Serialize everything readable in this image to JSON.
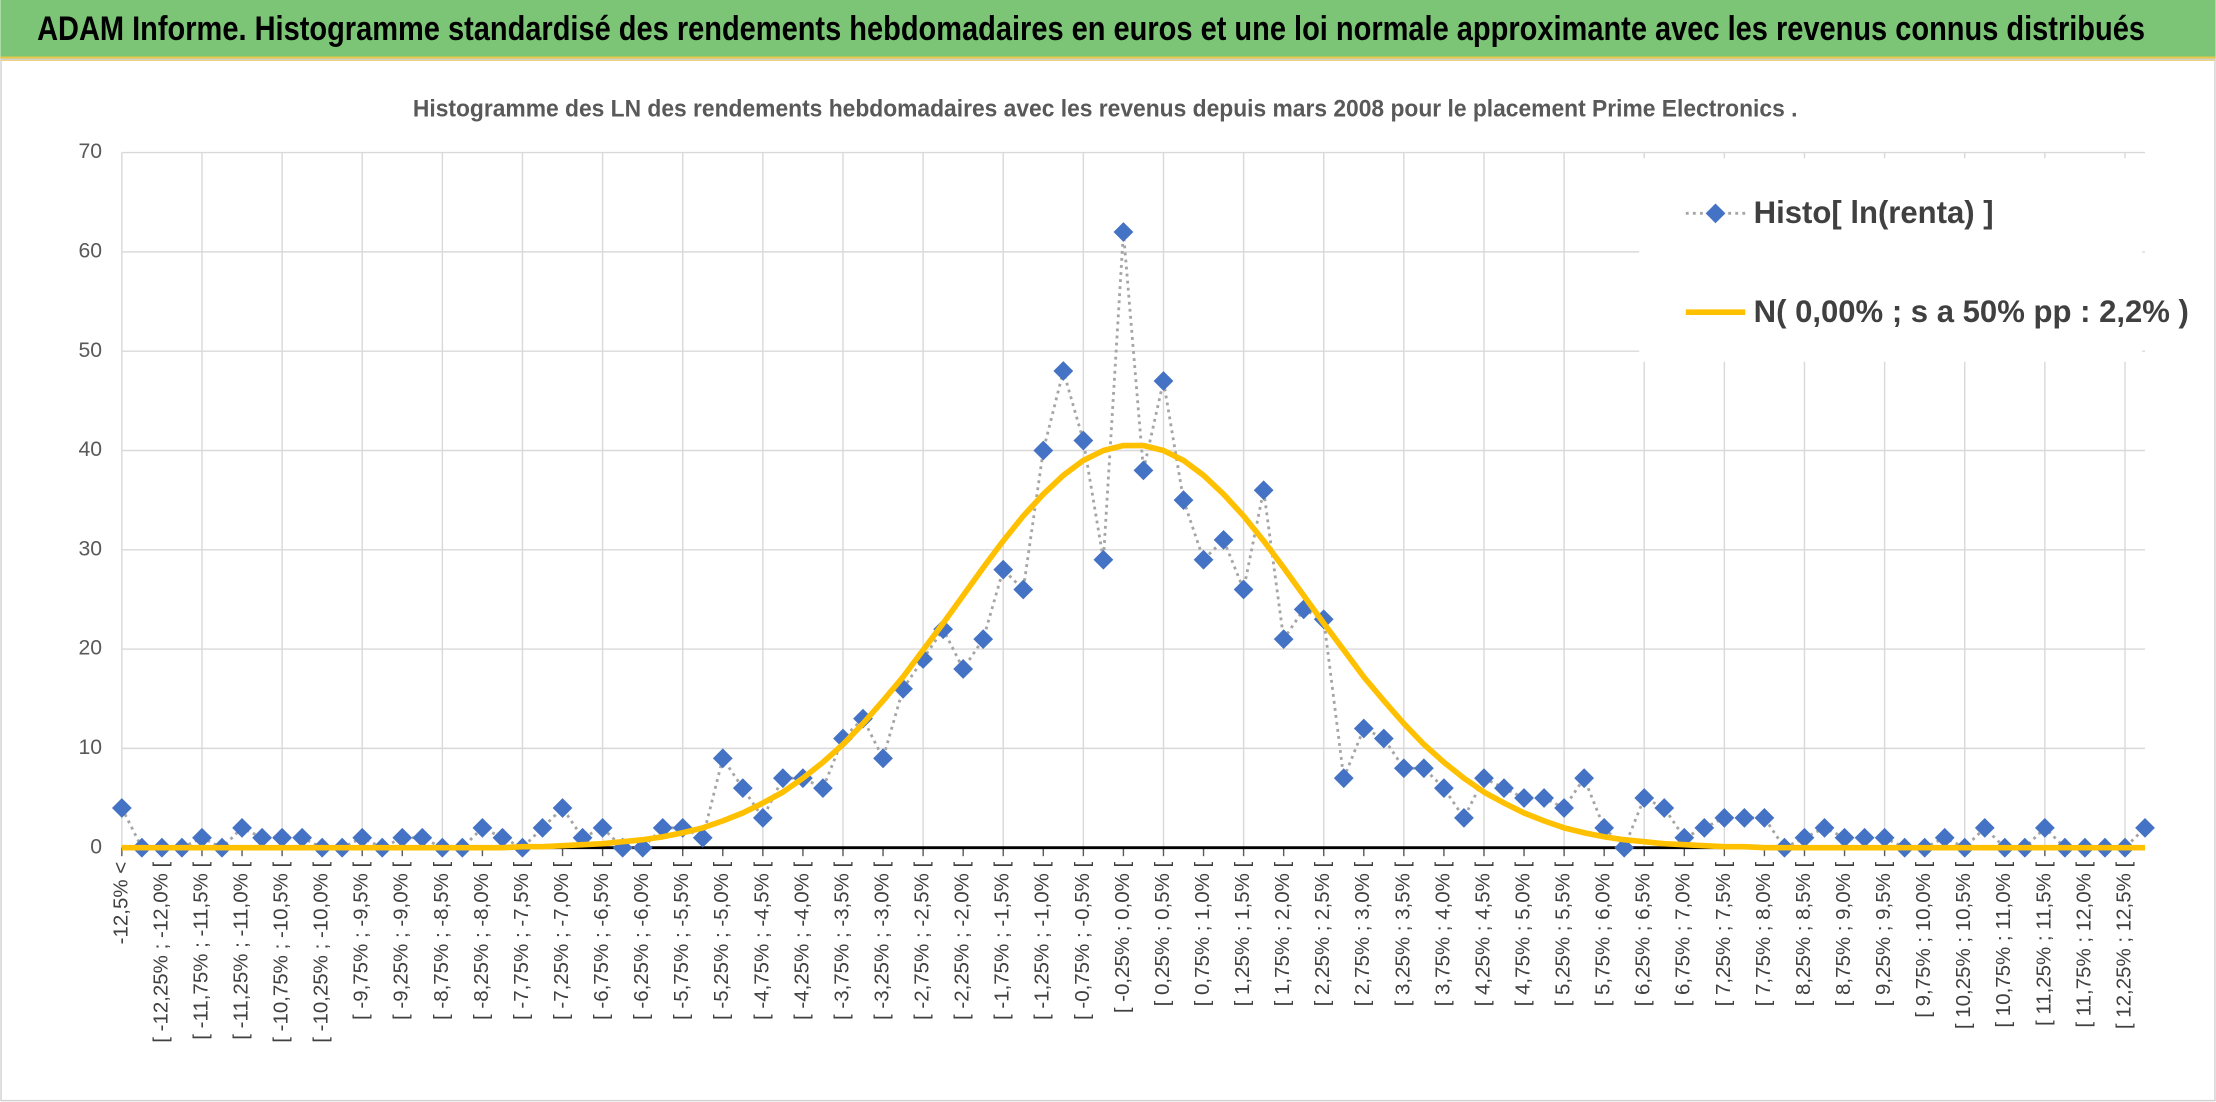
{
  "header": {
    "title": "ADAM Informe. Histogramme standardisé des rendements hebdomadaires en euros et une loi normale approximante avec les revenus connus distribués"
  },
  "chart_data": {
    "type": "line",
    "title": "Histogramme des LN des rendements hebdomadaires avec les revenus depuis mars 2008 pour le placement Prime Electronics .",
    "categories": [
      "-12,5% <",
      null,
      "[ -12,25% ; -12,0% [",
      null,
      "[ -11,75% ; -11,5% [",
      null,
      "[ -11,25% ; -11,0% [",
      null,
      "[ -10,75% ; -10,5% [",
      null,
      "[ -10,25% ; -10,0% [",
      null,
      "[ -9,75% ; -9,5% [",
      null,
      "[ -9,25% ; -9,0% [",
      null,
      "[ -8,75% ; -8,5% [",
      null,
      "[ -8,25% ; -8,0% [",
      null,
      "[ -7,75% ; -7,5% [",
      null,
      "[ -7,25% ; -7,0% [",
      null,
      "[ -6,75% ; -6,5% [",
      null,
      "[ -6,25% ; -6,0% [",
      null,
      "[ -5,75% ; -5,5% [",
      null,
      "[ -5,25% ; -5,0% [",
      null,
      "[ -4,75% ; -4,5% [",
      null,
      "[ -4,25% ; -4,0% [",
      null,
      "[ -3,75% ; -3,5% [",
      null,
      "[ -3,25% ; -3,0% [",
      null,
      "[ -2,75% ; -2,5% [",
      null,
      "[ -2,25% ; -2,0% [",
      null,
      "[ -1,75% ; -1,5% [",
      null,
      "[ -1,25% ; -1,0% [",
      null,
      "[ -0,75% ; -0,5% [",
      null,
      "[ -0,25% ; 0,0% [",
      null,
      "[ 0,25% ; 0,5% [",
      null,
      "[ 0,75% ; 1,0% [",
      null,
      "[ 1,25% ; 1,5% [",
      null,
      "[ 1,75% ; 2,0% [",
      null,
      "[ 2,25% ; 2,5% [",
      null,
      "[ 2,75% ; 3,0% [",
      null,
      "[ 3,25% ; 3,5% [",
      null,
      "[ 3,75% ; 4,0% [",
      null,
      "[ 4,25% ; 4,5% [",
      null,
      "[ 4,75% ; 5,0% [",
      null,
      "[ 5,25% ; 5,5% [",
      null,
      "[ 5,75% ; 6,0% [",
      null,
      "[ 6,25% ; 6,5% [",
      null,
      "[ 6,75% ; 7,0% [",
      null,
      "[ 7,25% ; 7,5% [",
      null,
      "[ 7,75% ; 8,0% [",
      null,
      "[ 8,25% ; 8,5% [",
      null,
      "[ 8,75% ; 9,0% [",
      null,
      "[ 9,25% ; 9,5% [",
      null,
      "[ 9,75% ; 10,0% [",
      null,
      "[ 10,25% ; 10,5% [",
      null,
      "[ 10,75% ; 11,0% [",
      null,
      "[ 11,25% ; 11,5% [",
      null,
      "[ 11,75% ; 12,0% [",
      null,
      "[ 12,25% ; 12,5% [",
      null
    ],
    "series": [
      {
        "name": "Histo[ ln(renta) ]",
        "color": "#4472c4",
        "line_color": "#a5a5a5",
        "marker": "diamond",
        "line_style": "dotted",
        "values": [
          4,
          0,
          0,
          0,
          1,
          0,
          2,
          1,
          1,
          1,
          0,
          0,
          1,
          0,
          1,
          1,
          0,
          0,
          2,
          1,
          0,
          2,
          4,
          1,
          2,
          0,
          0,
          2,
          2,
          1,
          9,
          6,
          3,
          7,
          7,
          6,
          11,
          13,
          9,
          16,
          19,
          22,
          18,
          21,
          28,
          26,
          40,
          48,
          41,
          29,
          62,
          38,
          47,
          35,
          29,
          31,
          26,
          36,
          21,
          24,
          23,
          7,
          12,
          11,
          8,
          8,
          6,
          3,
          7,
          6,
          5,
          5,
          4,
          7,
          2,
          0,
          5,
          4,
          1,
          2,
          3,
          3,
          3,
          0,
          1,
          2,
          1,
          1,
          1,
          0,
          0,
          1,
          0,
          2,
          0,
          0,
          2,
          0,
          0,
          0,
          0,
          2
        ]
      },
      {
        "name": "N( 0,00% ; s a 50% pp : 2,2% )",
        "color": "#ffc000",
        "line_style": "solid",
        "values": [
          0,
          0,
          0,
          0,
          0,
          0,
          0,
          0,
          0,
          0,
          0,
          0,
          0,
          0,
          0,
          0,
          0,
          0,
          0,
          0,
          0.1,
          0.1,
          0.2,
          0.3,
          0.4,
          0.6,
          0.8,
          1.1,
          1.5,
          2.0,
          2.7,
          3.5,
          4.5,
          5.6,
          7.0,
          8.6,
          10.4,
          12.5,
          14.8,
          17.2,
          19.9,
          22.6,
          25.4,
          28.2,
          30.9,
          33.4,
          35.6,
          37.5,
          39.0,
          40.0,
          40.5,
          40.5,
          40.0,
          39.0,
          37.5,
          35.6,
          33.4,
          30.9,
          28.2,
          25.4,
          22.6,
          19.9,
          17.2,
          14.8,
          12.5,
          10.4,
          8.6,
          7.0,
          5.6,
          4.5,
          3.5,
          2.7,
          2.0,
          1.5,
          1.1,
          0.8,
          0.6,
          0.4,
          0.3,
          0.2,
          0.1,
          0.1,
          0,
          0,
          0,
          0,
          0,
          0,
          0,
          0,
          0,
          0,
          0,
          0,
          0,
          0,
          0,
          0,
          0,
          0,
          0,
          0
        ]
      }
    ],
    "ylim": [
      0,
      70
    ],
    "yticks": [
      0,
      10,
      20,
      30,
      40,
      50,
      60,
      70
    ],
    "grid": true,
    "legend_position": "top-right"
  }
}
